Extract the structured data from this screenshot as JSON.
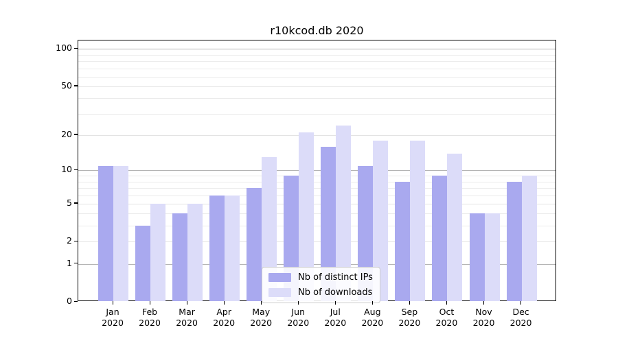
{
  "title": "r10kcod.db 2020",
  "chart_data": {
    "type": "bar",
    "title": "r10kcod.db 2020",
    "categories": [
      "Jan 2020",
      "Feb 2020",
      "Mar 2020",
      "Apr 2020",
      "May 2020",
      "Jun 2020",
      "Jul 2020",
      "Aug 2020",
      "Sep 2020",
      "Oct 2020",
      "Nov 2020",
      "Dec 2020"
    ],
    "x_tick_month": [
      "Jan",
      "Feb",
      "Mar",
      "Apr",
      "May",
      "Jun",
      "Jul",
      "Aug",
      "Sep",
      "Oct",
      "Nov",
      "Dec"
    ],
    "x_tick_year": "2020",
    "series": [
      {
        "name": "Nb of distinct IPs",
        "color": "#a9a9ef",
        "values": [
          11,
          3,
          4,
          6,
          7,
          9,
          16,
          11,
          8,
          9,
          4,
          8
        ]
      },
      {
        "name": "Nb of downloads",
        "color": "#dcdcf9",
        "values": [
          11,
          5,
          5,
          6,
          13,
          21,
          24,
          18,
          18,
          14,
          4,
          9
        ]
      }
    ],
    "xlabel": "",
    "ylabel": "",
    "yscale": "log1p",
    "ylim": [
      0,
      117
    ],
    "y_major_ticks": [
      0,
      1,
      2,
      5,
      10,
      20,
      50,
      100
    ],
    "y_decade_ticks": [
      1,
      10,
      100
    ],
    "y_minor_ticks": [
      3,
      4,
      6,
      7,
      8,
      9,
      30,
      40,
      60,
      70,
      80,
      90
    ],
    "grid": true,
    "legend_position": "lower center"
  },
  "colors": {
    "bar_distinct_ips": "#a9a9ef",
    "bar_downloads": "#dcdcf9",
    "grid_major": "#b4b4b4",
    "grid_minor": "#ebebeb",
    "spine": "#000000",
    "legend_border": "#cccccc",
    "background": "#ffffff"
  }
}
